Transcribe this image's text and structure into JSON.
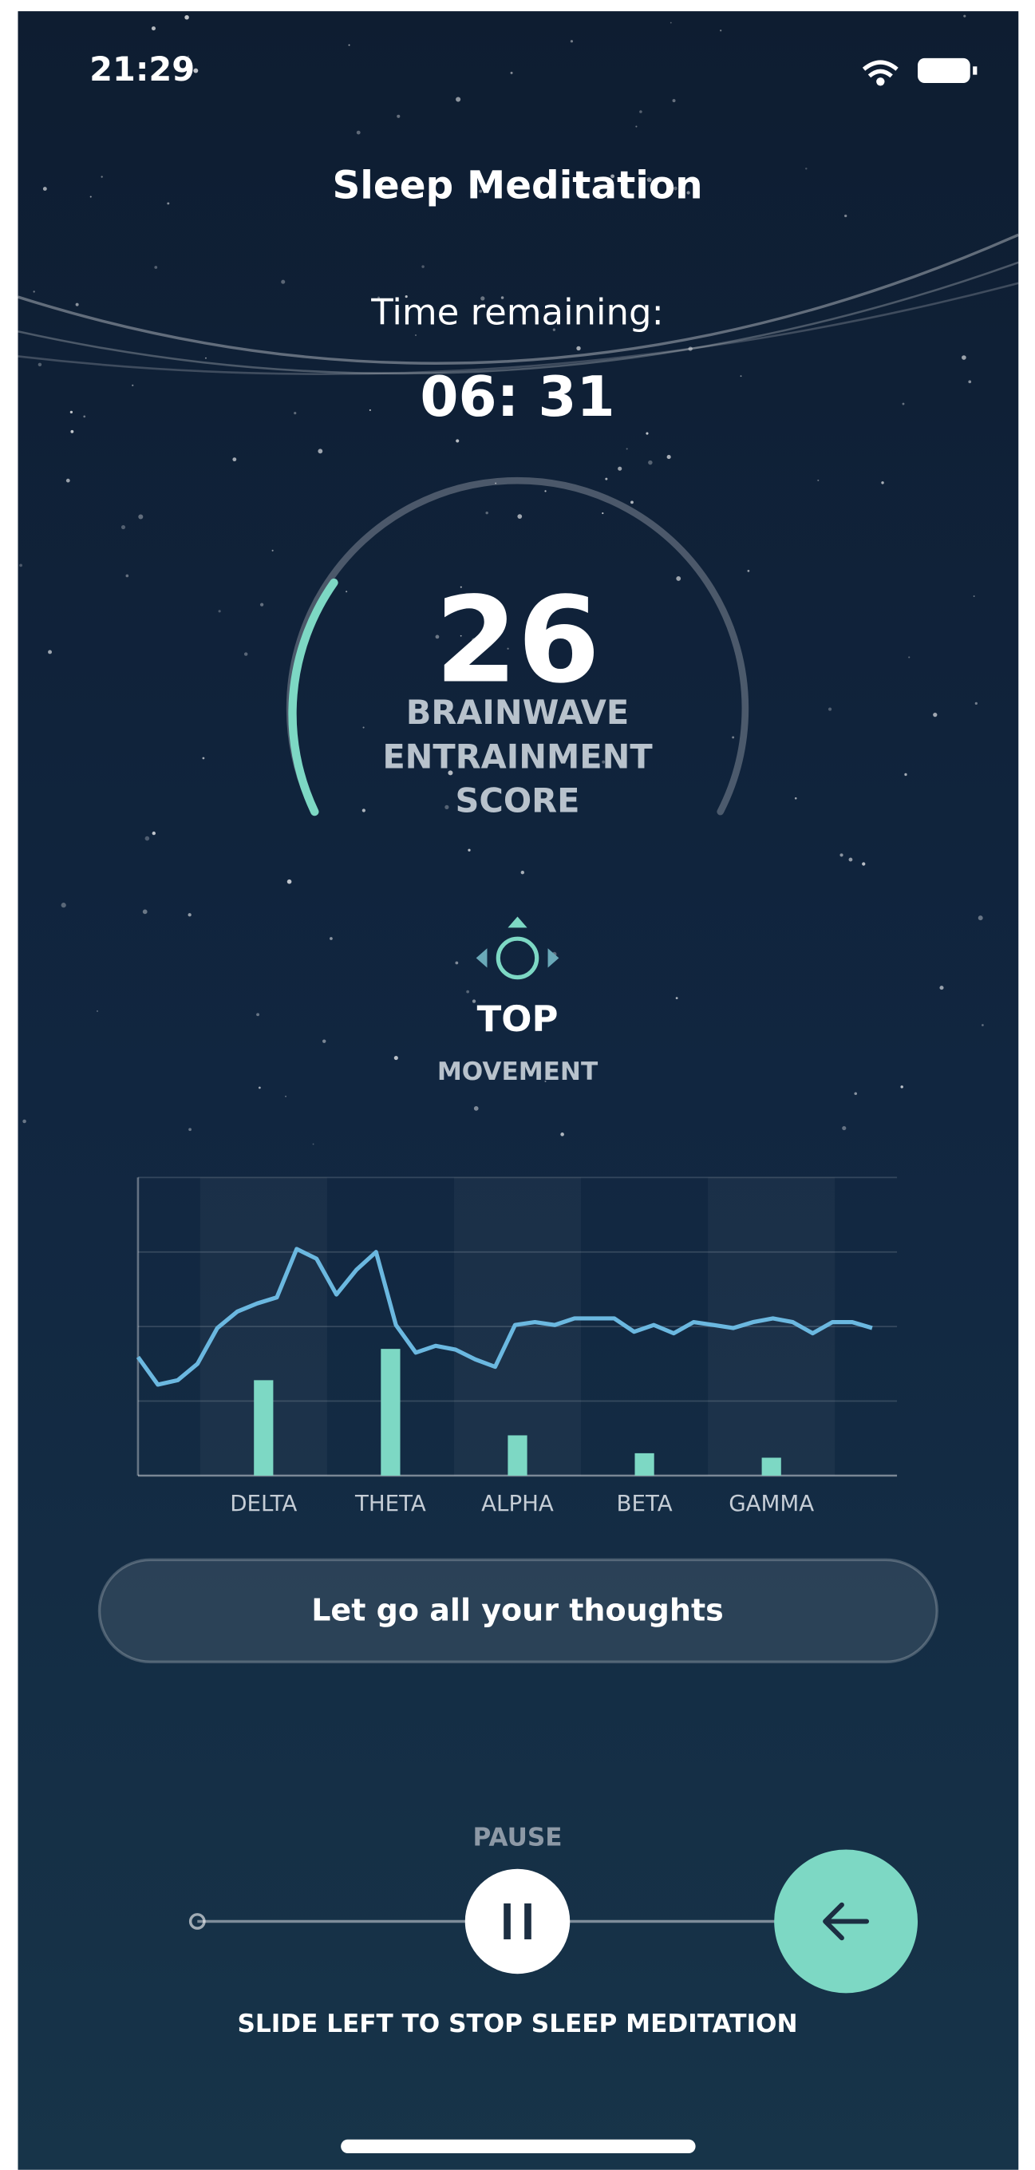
{
  "status_bar": {
    "time": "21:29"
  },
  "header": {
    "title": "Sleep Meditation"
  },
  "timer": {
    "label": "Time remaining:",
    "value": "06: 31"
  },
  "score": {
    "value": 26,
    "label_lines": [
      "BRAINWAVE",
      "ENTRAINMENT",
      "SCORE"
    ]
  },
  "position": {
    "value": "TOP",
    "label": "MOVEMENT"
  },
  "chart_data": {
    "type": "bar",
    "categories": [
      "DELTA",
      "THETA",
      "ALPHA",
      "BETA",
      "GAMMA"
    ],
    "values": [
      1.28,
      1.7,
      0.54,
      0.3,
      0.24
    ],
    "color": "#7dd8c4",
    "ylim": [
      0,
      4
    ],
    "yticks": [
      0,
      1,
      2,
      3,
      4
    ],
    "grid": true,
    "line": {
      "color": "#6bb8e0",
      "values": [
        1.59,
        1.22,
        1.28,
        1.5,
        1.98,
        2.2,
        2.31,
        2.39,
        3.04,
        2.91,
        2.43,
        2.76,
        3.0,
        2.02,
        1.65,
        1.74,
        1.69,
        1.56,
        1.46,
        2.02,
        2.06,
        2.02,
        2.11,
        2.11,
        2.11,
        1.93,
        2.02,
        1.91,
        2.06,
        2.02,
        1.98,
        2.06,
        2.11,
        2.06,
        1.91,
        2.06,
        2.06,
        1.98
      ]
    }
  },
  "prompt": "Let go all your thoughts",
  "controls": {
    "pause_label": "PAUSE",
    "hint": "SLIDE LEFT TO STOP SLEEP MEDITATION"
  }
}
